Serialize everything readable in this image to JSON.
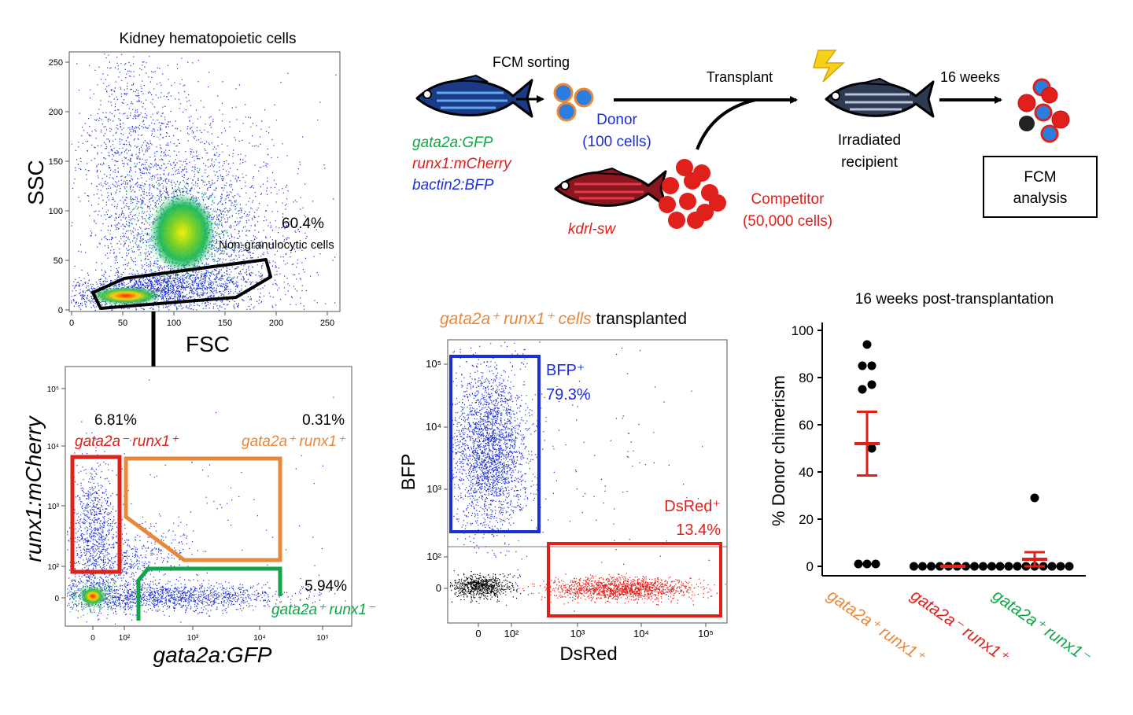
{
  "colors": {
    "green": "#11a64a",
    "red": "#e0201b",
    "blue": "#1c2fd6",
    "orange": "#e8883a",
    "black": "#000000"
  },
  "panel_a": {
    "title": "Kidney hematopoietic cells",
    "xlabel": "FSC",
    "ylabel": "SSC",
    "xticks": [
      "0",
      "50",
      "100",
      "150",
      "200",
      "250"
    ],
    "yticks": [
      "0",
      "50",
      "100",
      "150",
      "200",
      "250"
    ],
    "gate_pct": "60.4%",
    "gate_label": "Non-granulocytic cells"
  },
  "panel_b": {
    "xlabel": "gata2a:GFP",
    "ylabel": "runx1:mCherry",
    "xticks": [
      "0",
      "10²",
      "10³",
      "10⁴",
      "10⁵"
    ],
    "yticks": [
      "0",
      "10²",
      "10³",
      "10⁴",
      "10⁵"
    ],
    "gates": [
      {
        "pct": "6.81%",
        "name": "gata2a⁻ runx1⁺",
        "color": "#e0201b"
      },
      {
        "pct": "0.31%",
        "name": "gata2a⁺ runx1⁺",
        "color": "#e8883a"
      },
      {
        "pct": "5.94%",
        "name": "gata2a⁺ runx1⁻",
        "color": "#11a64a"
      }
    ]
  },
  "scheme": {
    "sorting": "FCM sorting",
    "transplant": "Transplant",
    "weeks": "16 weeks",
    "donor_line1": "Donor",
    "donor_line2": "(100 cells)",
    "donor_fish_genotypes": [
      {
        "text": "gata2a:GFP",
        "color": "#11a64a"
      },
      {
        "text": "runx1:mCherry",
        "color": "#e0201b"
      },
      {
        "text": "bactin2:BFP",
        "color": "#1c2fd6"
      }
    ],
    "competitor_fish": "kdrl-sw",
    "competitor_line1": "Competitor",
    "competitor_line2": "(50,000 cells)",
    "recipient_line1": "Irradiated",
    "recipient_line2": "recipient",
    "analysis_line1": "FCM",
    "analysis_line2": "analysis"
  },
  "panel_c": {
    "title_colored": "gata2a⁺ runx1⁺ cells",
    "title_rest": "transplanted",
    "xlabel": "DsRed",
    "ylabel": "BFP",
    "xticks": [
      "0",
      "10²",
      "10³",
      "10⁴",
      "10⁵"
    ],
    "yticks": [
      "0",
      "10²",
      "10³",
      "10⁴",
      "10⁵"
    ],
    "bfp_gate_name": "BFP⁺",
    "bfp_gate_pct": "79.3%",
    "dsred_gate_name": "DsRed⁺",
    "dsred_gate_pct": "13.4%"
  },
  "chart_data": {
    "type": "scatter",
    "title": "16 weeks post-transplantation",
    "ylabel": "% Donor chimerism",
    "ylim": [
      0,
      100
    ],
    "yticks": [
      0,
      20,
      40,
      60,
      80,
      100
    ],
    "categories": [
      {
        "label": "gata2a⁺ runx1⁺",
        "color": "#e8883a"
      },
      {
        "label": "gata2a⁻ runx1⁺",
        "color": "#e0201b"
      },
      {
        "label": "gata2a⁺ runx1⁻",
        "color": "#11a64a"
      }
    ],
    "groups": [
      {
        "values": [
          94,
          85,
          85,
          77,
          75,
          50,
          1,
          1,
          1
        ],
        "mean": 52,
        "sem": 13.5
      },
      {
        "values": [
          0,
          0,
          0,
          0,
          0,
          0,
          0,
          0,
          0,
          0
        ],
        "mean": 0,
        "sem": 0
      },
      {
        "values": [
          29,
          0,
          0,
          0,
          0,
          0,
          0,
          0,
          0,
          0
        ],
        "mean": 3,
        "sem": 3
      }
    ]
  }
}
